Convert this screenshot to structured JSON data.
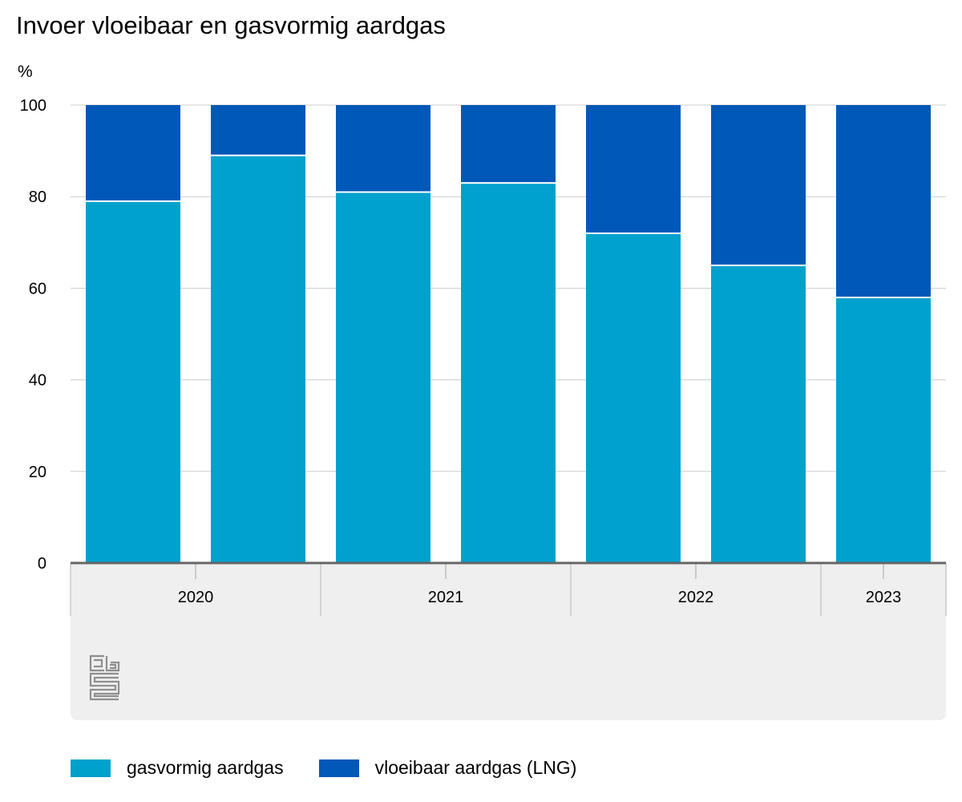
{
  "chart_data": {
    "type": "bar",
    "stacked": true,
    "title": "Invoer vloeibaar en gasvormig aardgas",
    "ylabel": "%",
    "ylim": [
      0,
      100
    ],
    "yticks": [
      0,
      20,
      40,
      60,
      80,
      100
    ],
    "grid": true,
    "legend_position": "bottom",
    "bars": 7,
    "year_groups": [
      {
        "label": "2020",
        "bars": 2
      },
      {
        "label": "2021",
        "bars": 2
      },
      {
        "label": "2022",
        "bars": 2
      },
      {
        "label": "2023",
        "bars": 1
      }
    ],
    "series": [
      {
        "name": "gasvormig aardgas",
        "color": "#00a1cd",
        "values": [
          79,
          89,
          81,
          83,
          72,
          65,
          58
        ]
      },
      {
        "name": "vloeibaar aardgas (LNG)",
        "color": "#0058b8",
        "values": [
          21,
          11,
          19,
          17,
          28,
          35,
          42
        ]
      }
    ]
  },
  "logo": {
    "text": "cbs"
  }
}
